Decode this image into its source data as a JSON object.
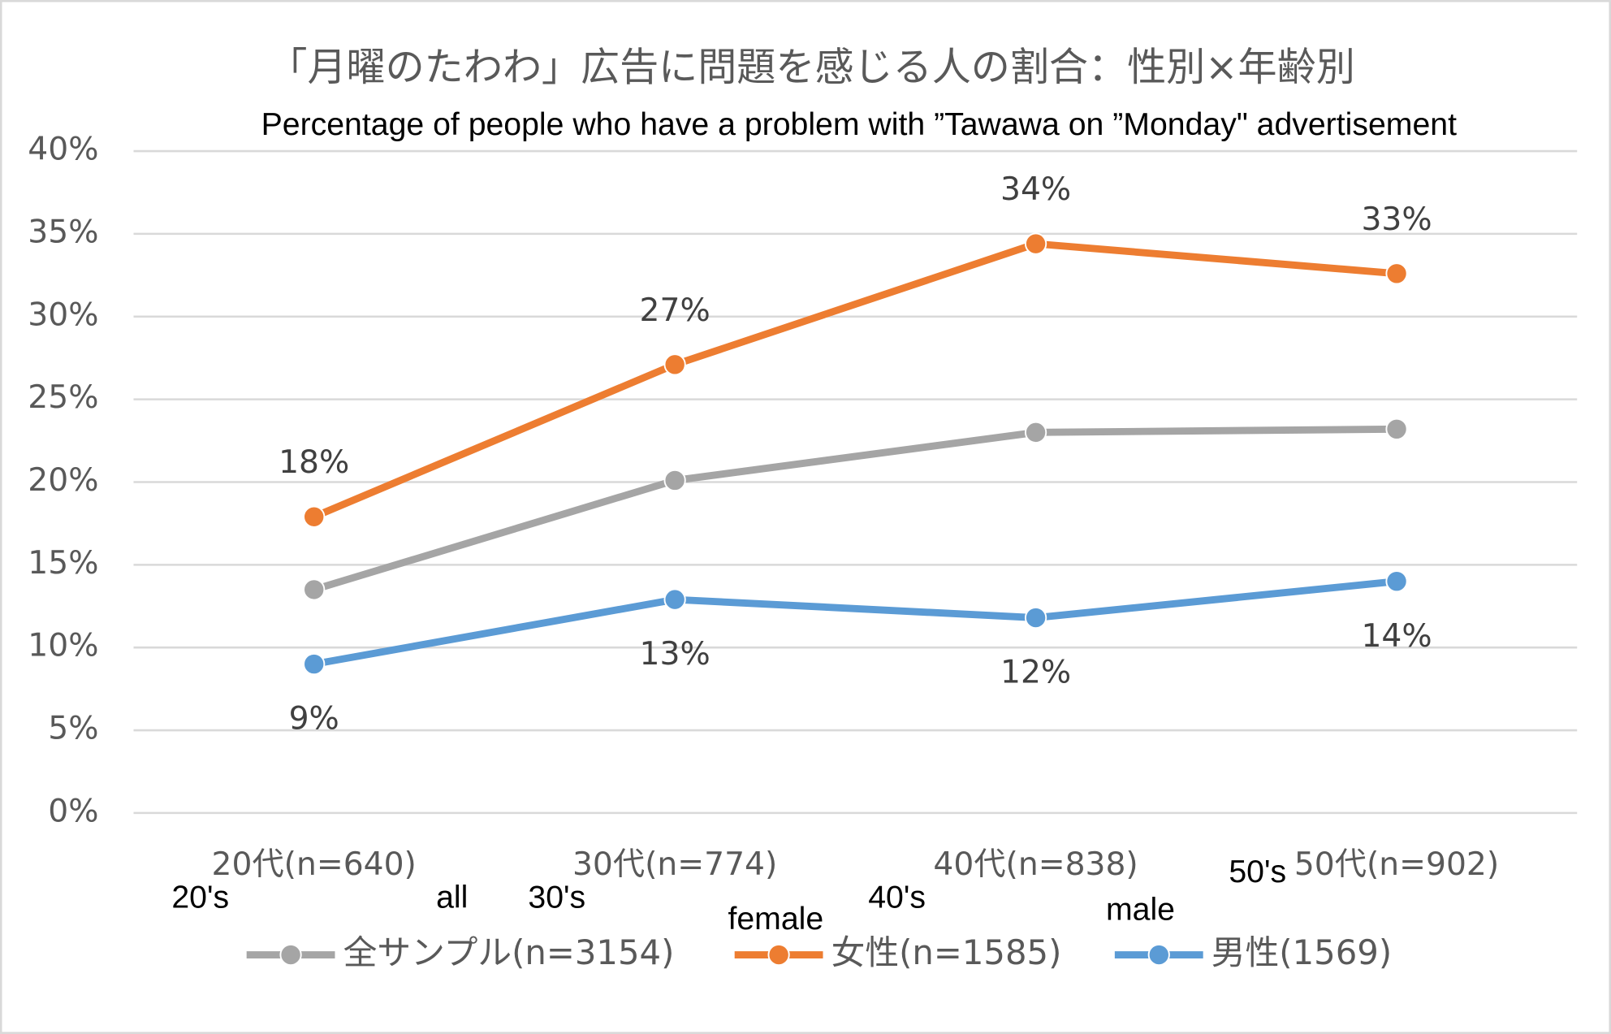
{
  "chart_data": {
    "type": "line",
    "title": "「月曜のたわわ」広告に問題を感じる人の割合：性別×年齢別",
    "subtitle": "Percentage of people who have a problem with ”Tawawa on ”Monday\" advertisement",
    "categories": [
      "20代(n=640)",
      "30代(n=774)",
      "40代(n=838)",
      "50代(n=902)"
    ],
    "series": [
      {
        "name": "全サンプル(n=3154)",
        "color": "#a5a5a5",
        "values": [
          13.5,
          20.1,
          23.0,
          23.2
        ]
      },
      {
        "name": "女性(n=1585)",
        "color": "#ed7d31",
        "values": [
          17.9,
          27.1,
          34.4,
          32.6
        ],
        "value_labels": [
          "18%",
          "27%",
          "34%",
          "33%"
        ]
      },
      {
        "name": "男性(1569)",
        "color": "#5b9bd5",
        "values": [
          9.0,
          12.9,
          11.8,
          14.0
        ],
        "value_labels": [
          "9%",
          "13%",
          "12%",
          "14%"
        ]
      }
    ],
    "ylim": [
      0,
      40
    ],
    "yticks": [
      {
        "value": 0,
        "label": "0%"
      },
      {
        "value": 5,
        "label": "5%"
      },
      {
        "value": 10,
        "label": "10%"
      },
      {
        "value": 15,
        "label": "15%"
      },
      {
        "value": 20,
        "label": "20%"
      },
      {
        "value": 25,
        "label": "25%"
      },
      {
        "value": 30,
        "label": "30%"
      },
      {
        "value": 35,
        "label": "35%"
      },
      {
        "value": 40,
        "label": "40%"
      }
    ],
    "grid": true,
    "legend": "bottom",
    "annotations": [
      "20's",
      "all",
      "30's",
      "female",
      "40's",
      "male",
      "50's"
    ]
  }
}
